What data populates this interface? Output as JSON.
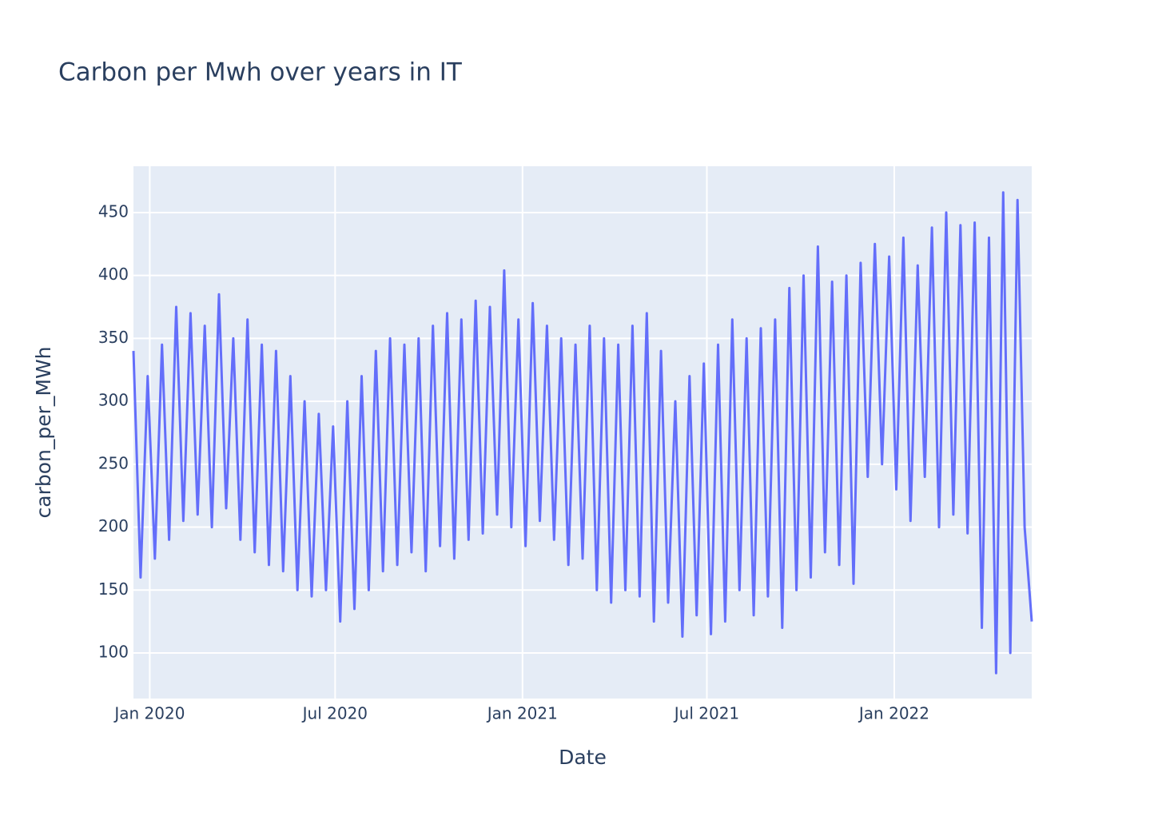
{
  "chart_data": {
    "type": "line",
    "title": "Carbon per Mwh over years in IT",
    "x_label": "Date",
    "y_label": "carbon_per_MWh",
    "color": "#636efa",
    "grid": true,
    "x": [
      "2019-12-16",
      "2019-12-23",
      "2019-12-30",
      "2020-01-06",
      "2020-01-13",
      "2020-01-20",
      "2020-01-27",
      "2020-02-03",
      "2020-02-10",
      "2020-02-17",
      "2020-02-24",
      "2020-03-02",
      "2020-03-09",
      "2020-03-16",
      "2020-03-23",
      "2020-03-30",
      "2020-04-06",
      "2020-04-13",
      "2020-04-20",
      "2020-04-27",
      "2020-05-04",
      "2020-05-11",
      "2020-05-18",
      "2020-05-25",
      "2020-06-01",
      "2020-06-08",
      "2020-06-15",
      "2020-06-22",
      "2020-06-29",
      "2020-07-06",
      "2020-07-13",
      "2020-07-20",
      "2020-07-27",
      "2020-08-03",
      "2020-08-10",
      "2020-08-17",
      "2020-08-24",
      "2020-08-31",
      "2020-09-07",
      "2020-09-14",
      "2020-09-21",
      "2020-09-28",
      "2020-10-05",
      "2020-10-12",
      "2020-10-19",
      "2020-10-26",
      "2020-11-02",
      "2020-11-09",
      "2020-11-16",
      "2020-11-23",
      "2020-11-30",
      "2020-12-07",
      "2020-12-14",
      "2020-12-21",
      "2020-12-28",
      "2021-01-04",
      "2021-01-11",
      "2021-01-18",
      "2021-01-25",
      "2021-02-01",
      "2021-02-08",
      "2021-02-15",
      "2021-02-22",
      "2021-03-01",
      "2021-03-08",
      "2021-03-15",
      "2021-03-22",
      "2021-03-29",
      "2021-04-05",
      "2021-04-12",
      "2021-04-19",
      "2021-04-26",
      "2021-05-03",
      "2021-05-10",
      "2021-05-17",
      "2021-05-24",
      "2021-05-31",
      "2021-06-07",
      "2021-06-14",
      "2021-06-21",
      "2021-06-28",
      "2021-07-05",
      "2021-07-12",
      "2021-07-19",
      "2021-07-26",
      "2021-08-02",
      "2021-08-09",
      "2021-08-16",
      "2021-08-23",
      "2021-08-30",
      "2021-09-06",
      "2021-09-13",
      "2021-09-20",
      "2021-09-27",
      "2021-10-04",
      "2021-10-11",
      "2021-10-18",
      "2021-10-25",
      "2021-11-01",
      "2021-11-08",
      "2021-11-15",
      "2021-11-22",
      "2021-11-29",
      "2021-12-06",
      "2021-12-13",
      "2021-12-20",
      "2021-12-27",
      "2022-01-03",
      "2022-01-10",
      "2022-01-17",
      "2022-01-24",
      "2022-01-31",
      "2022-02-07",
      "2022-02-14",
      "2022-02-21",
      "2022-02-28",
      "2022-03-07",
      "2022-03-14",
      "2022-03-21",
      "2022-03-28",
      "2022-04-04",
      "2022-04-11",
      "2022-04-18",
      "2022-04-25",
      "2022-05-02",
      "2022-05-09",
      "2022-05-16"
    ],
    "values": [
      340,
      160,
      320,
      175,
      345,
      190,
      375,
      205,
      370,
      210,
      360,
      200,
      385,
      215,
      350,
      190,
      365,
      180,
      345,
      170,
      340,
      165,
      320,
      150,
      300,
      145,
      290,
      150,
      280,
      125,
      300,
      135,
      320,
      150,
      340,
      165,
      350,
      170,
      345,
      180,
      350,
      165,
      360,
      185,
      370,
      175,
      365,
      190,
      380,
      195,
      375,
      210,
      404,
      200,
      365,
      185,
      378,
      205,
      360,
      190,
      350,
      170,
      345,
      175,
      360,
      150,
      350,
      140,
      345,
      150,
      360,
      145,
      370,
      125,
      340,
      140,
      300,
      113,
      320,
      130,
      330,
      115,
      345,
      125,
      365,
      150,
      350,
      130,
      358,
      145,
      365,
      120,
      390,
      150,
      400,
      160,
      423,
      180,
      395,
      170,
      400,
      155,
      410,
      240,
      425,
      250,
      415,
      230,
      430,
      205,
      408,
      240,
      438,
      200,
      450,
      210,
      440,
      195,
      442,
      120,
      430,
      84,
      466,
      100,
      460,
      200,
      125
    ],
    "xlim": [
      "2019-12-16",
      "2022-05-16"
    ],
    "xticks": [
      {
        "value": "2020-01-01",
        "label": "Jan 2020"
      },
      {
        "value": "2020-07-01",
        "label": "Jul 2020"
      },
      {
        "value": "2021-01-01",
        "label": "Jan 2021"
      },
      {
        "value": "2021-07-01",
        "label": "Jul 2021"
      },
      {
        "value": "2022-01-01",
        "label": "Jan 2022"
      }
    ],
    "ylim": [
      63.8,
      486.8
    ],
    "yticks": [
      100,
      150,
      200,
      250,
      300,
      350,
      400,
      450
    ]
  }
}
